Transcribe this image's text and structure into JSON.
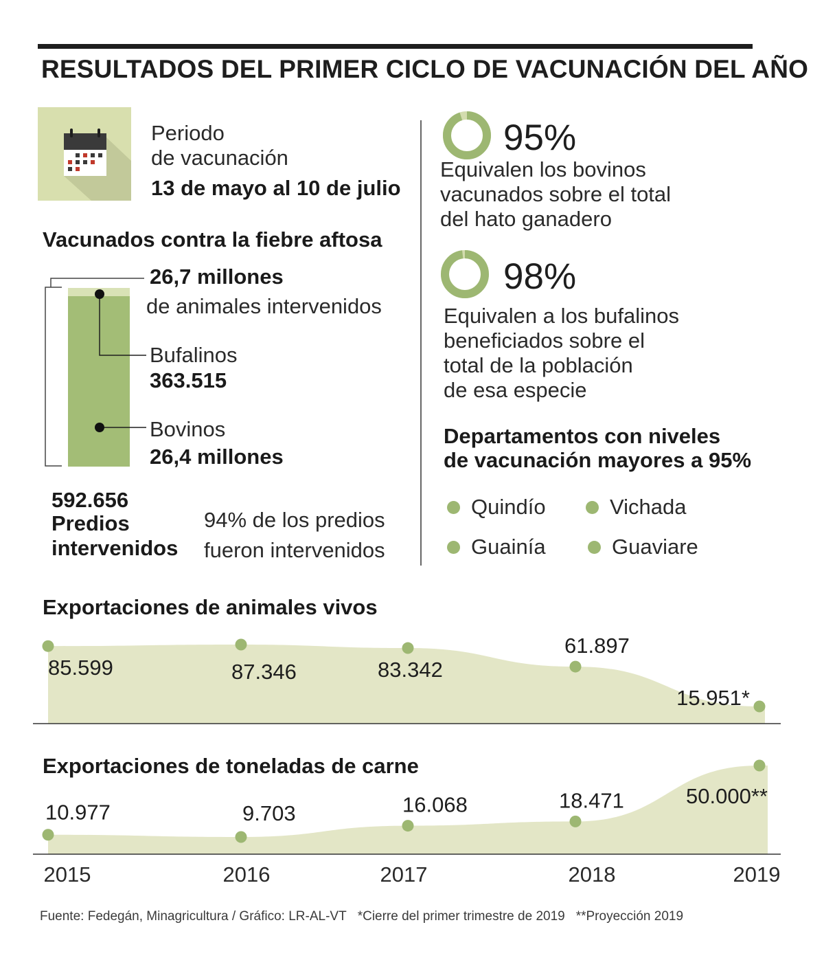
{
  "title": "RESULTADOS DEL PRIMER CICLO DE VACUNACIÓN DEL AÑO",
  "colors": {
    "green": "#9db772",
    "green_bar": "#a3bd76",
    "green_light": "#d9e2b6",
    "area_fill": "#e3e6c6",
    "ring_track": "#d3dcae",
    "icon_bg": "#d8dfae"
  },
  "period": {
    "icon": "calendar-icon",
    "line1": "Periodo",
    "line2": "de vacunación",
    "dates": "13 de mayo al 10 de julio"
  },
  "vaccinated": {
    "heading": "Vacunados contra la fiebre aftosa",
    "total_value": "26,7 millones",
    "total_label": "de animales intervenidos",
    "bufalinos_label": "Bufalinos",
    "bufalinos_value": "363.515",
    "bovinos_label": "Bovinos",
    "bovinos_value": "26,4 millones",
    "predios_value": "592.656",
    "predios_label1": "Predios",
    "predios_label2": "intervenidos",
    "predios_pct_line1": "94% de los predios",
    "predios_pct_line2": "fueron intervenidos"
  },
  "stats": [
    {
      "value": "95%",
      "percent": 95,
      "lines": [
        "Equivalen los bovinos",
        "vacunados sobre el total",
        "del hato ganadero"
      ]
    },
    {
      "value": "98%",
      "percent": 98,
      "lines": [
        "Equivalen a los bufalinos",
        "beneficiados sobre el",
        "total de la población",
        "de esa especie"
      ]
    }
  ],
  "departments": {
    "heading_line1": "Departamentos con niveles",
    "heading_line2": "de vacunación mayores a 95%",
    "items": [
      "Quindío",
      "Vichada",
      "Guainía",
      "Guaviare"
    ]
  },
  "chart_data": [
    {
      "type": "area",
      "title": "Exportaciones de animales vivos",
      "categories": [
        "2015",
        "2016",
        "2017",
        "2018",
        "2019"
      ],
      "values": [
        85599,
        87346,
        83342,
        61897,
        15951
      ],
      "labels": [
        "85.599",
        "87.346",
        "83.342",
        "61.897",
        "15.951*"
      ]
    },
    {
      "type": "area",
      "title": "Exportaciones de toneladas de carne",
      "categories": [
        "2015",
        "2016",
        "2017",
        "2018",
        "2019"
      ],
      "values": [
        10977,
        9703,
        16068,
        18471,
        50000
      ],
      "labels": [
        "10.977",
        "9.703",
        "16.068",
        "18.471",
        "50.000**"
      ]
    }
  ],
  "footer": {
    "source": "Fuente: Fedegán, Minagricultura / Gráfico: LR-AL-VT",
    "note1": "*Cierre del primer trimestre de 2019",
    "note2": "**Proyección 2019"
  }
}
